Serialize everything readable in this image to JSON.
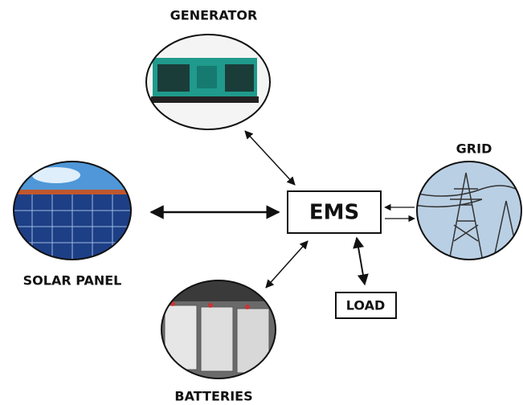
{
  "nodes": {
    "generator": {
      "label": "GENERATOR"
    },
    "solar_panel": {
      "label": "SOLAR PANEL"
    },
    "grid": {
      "label": "GRID"
    },
    "batteries": {
      "label": "BATTERIES"
    },
    "ems": {
      "label": "EMS"
    },
    "load": {
      "label": "LOAD"
    }
  }
}
